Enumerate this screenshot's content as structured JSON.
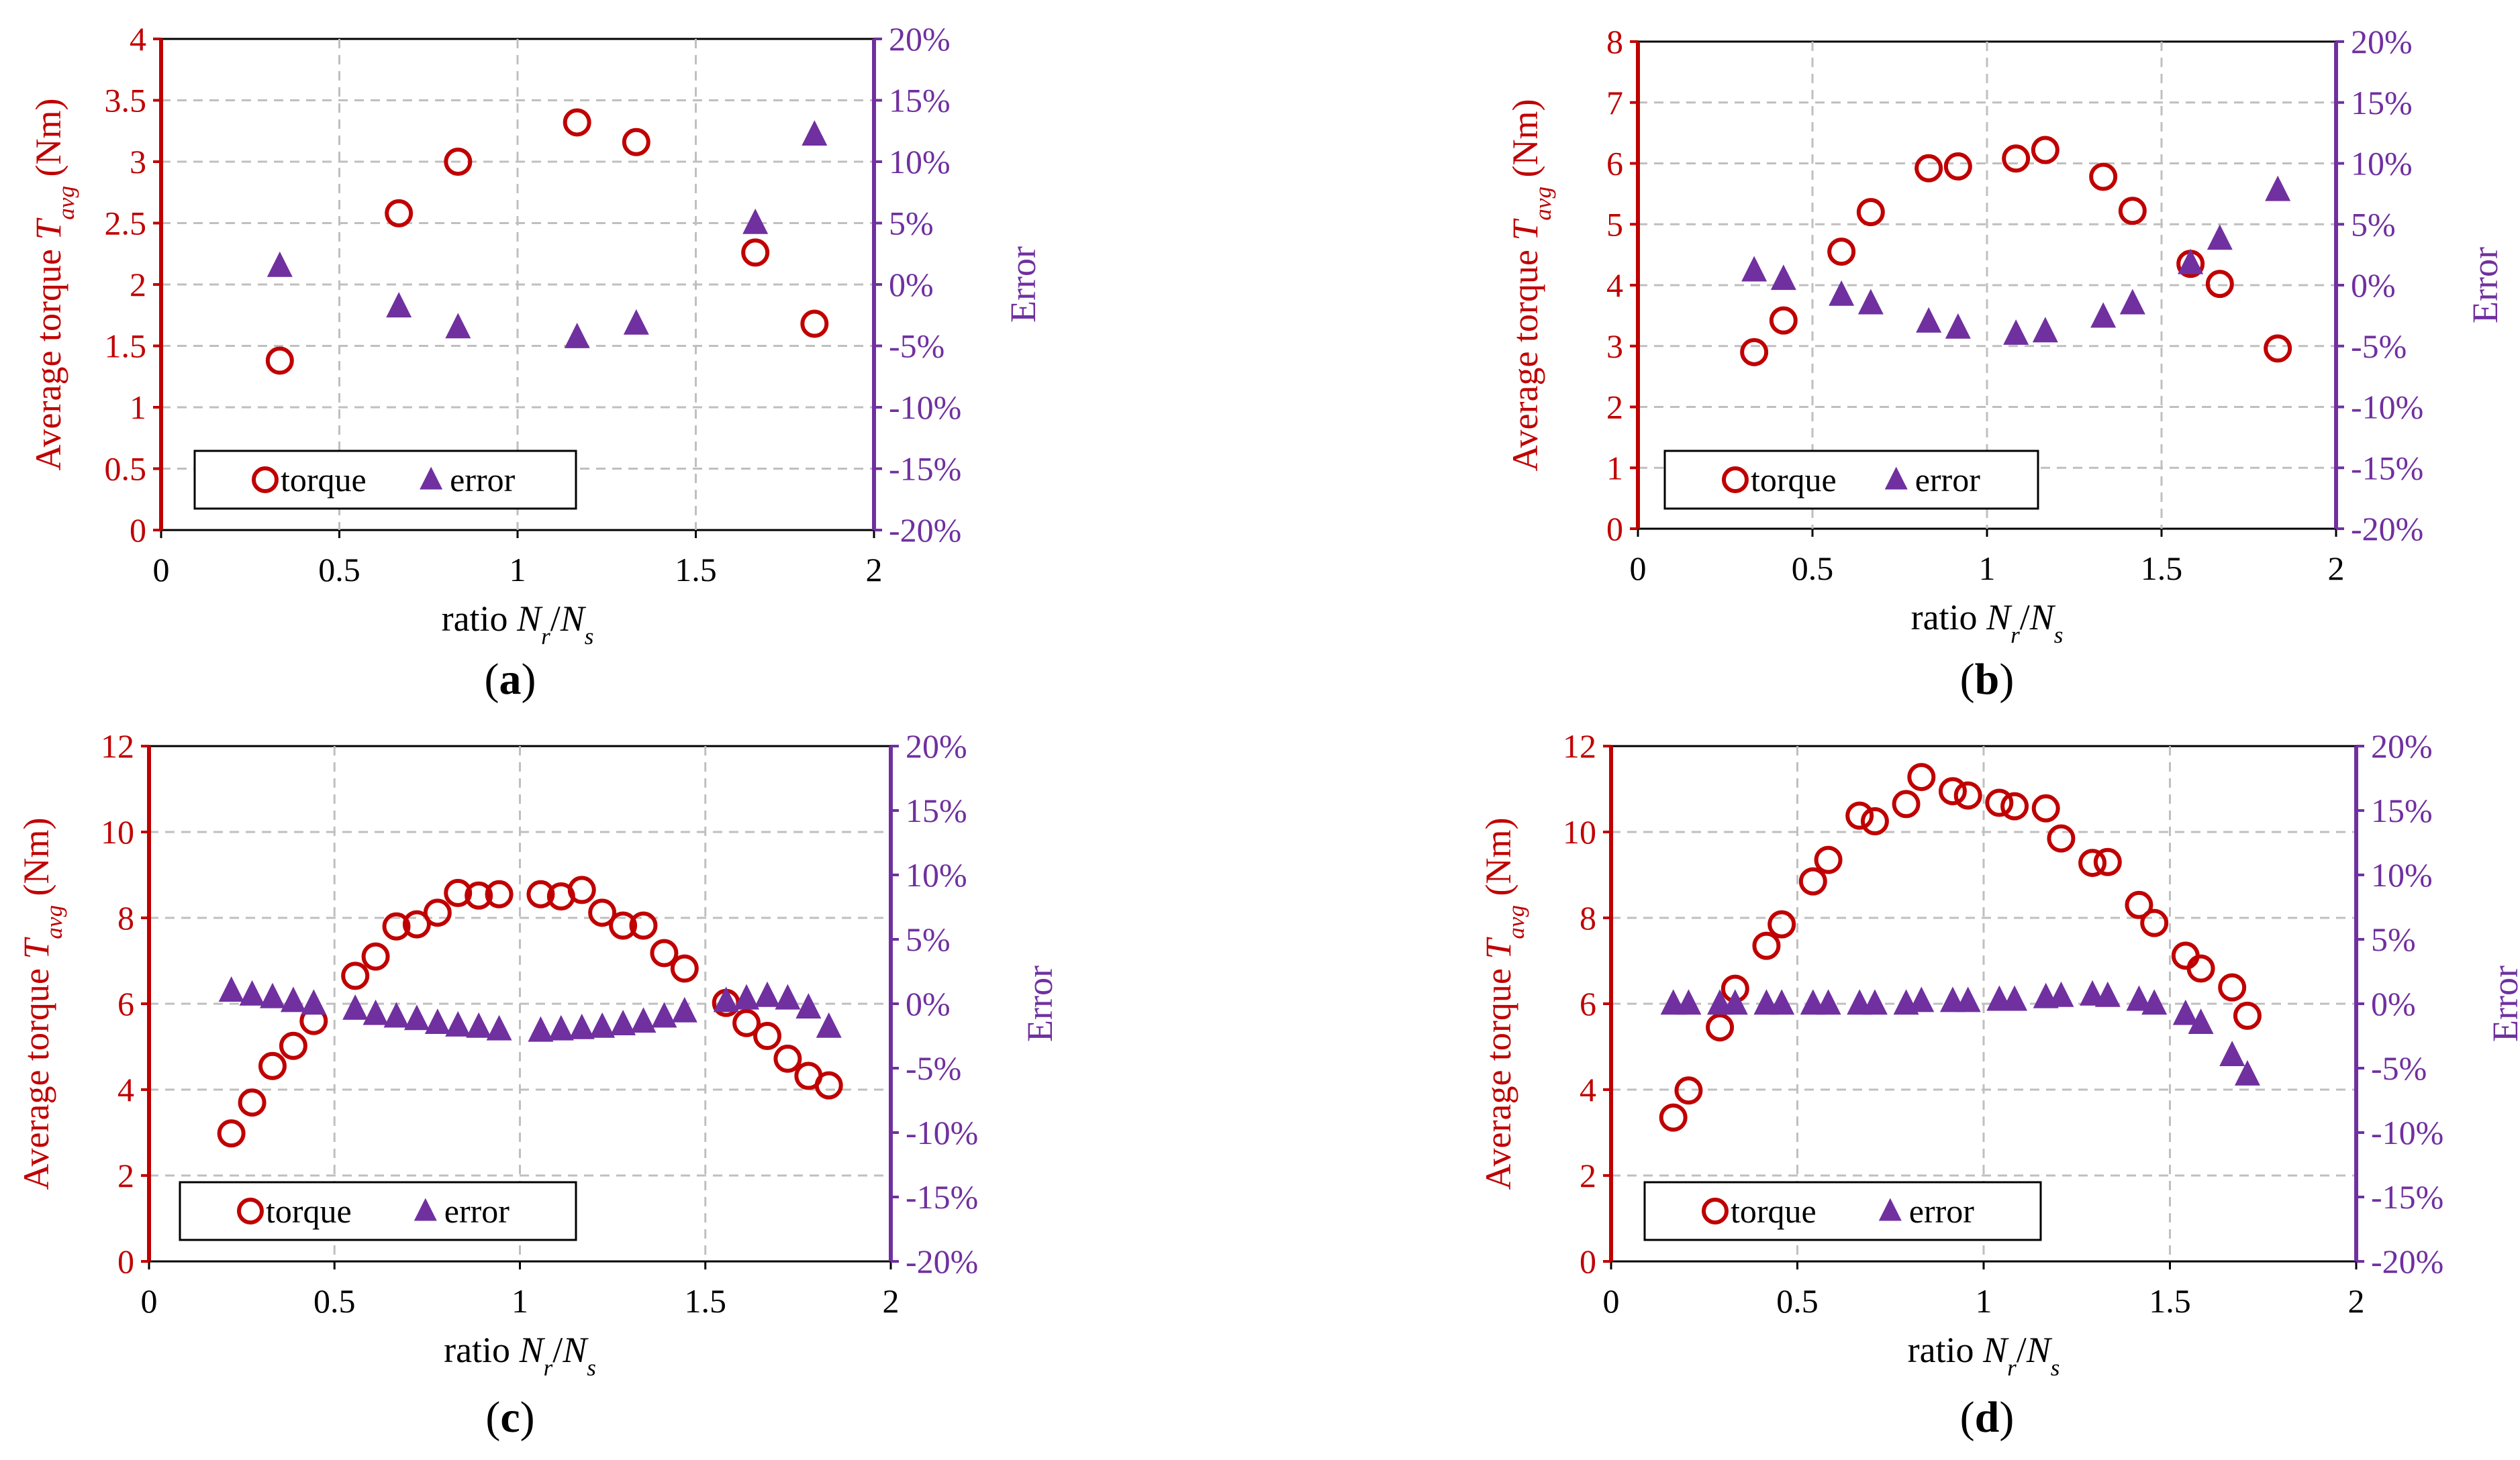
{
  "colors": {
    "torque": "#C00000",
    "error": "#7030A0",
    "grid": "#BFBFBF",
    "text": "#000000"
  },
  "panel_labels": [
    "a",
    "b",
    "c",
    "d"
  ],
  "chart_data": [
    {
      "id": "a",
      "type": "scatter",
      "xlabel": "ratio",
      "xlabel_math": [
        "N",
        "r",
        "/",
        "N",
        "s"
      ],
      "ylabel_left": "Average torque",
      "ylabel_left_math": [
        "T",
        "avg"
      ],
      "ylabel_left_unit": "(Nm)",
      "ylabel_right": "Error",
      "xlim": [
        0,
        2
      ],
      "xticks": [
        0,
        0.5,
        1,
        1.5,
        2
      ],
      "xtick_labels": [
        "0",
        "0.5",
        "1",
        "1.5",
        "2"
      ],
      "ylim_left": [
        0,
        4
      ],
      "yticks_left": [
        0,
        0.5,
        1,
        1.5,
        2,
        2.5,
        3,
        3.5,
        4
      ],
      "ytick_labels_left": [
        "0",
        "0.5",
        "1",
        "1.5",
        "2",
        "2.5",
        "3",
        "3.5",
        "4"
      ],
      "ylim_right": [
        -20,
        20
      ],
      "yticks_right": [
        -20,
        -15,
        -10,
        -5,
        0,
        5,
        10,
        15,
        20
      ],
      "ytick_labels_right": [
        "-20%",
        "-15%",
        "-10%",
        "-5%",
        "0%",
        "5%",
        "10%",
        "15%",
        "20%"
      ],
      "legend": [
        "torque",
        "error"
      ],
      "legend_position": "bottom-left",
      "series": [
        {
          "name": "torque",
          "axis": "left",
          "marker": "circle",
          "x": [
            0.333,
            0.667,
            0.833,
            1.167,
            1.333,
            1.667,
            1.833
          ],
          "y": [
            1.38,
            2.58,
            3.0,
            3.32,
            3.16,
            2.26,
            1.68
          ]
        },
        {
          "name": "error",
          "axis": "right",
          "marker": "triangle",
          "x": [
            0.333,
            0.667,
            0.833,
            1.167,
            1.333,
            1.667,
            1.833
          ],
          "y": [
            1.5,
            -1.8,
            -3.5,
            -4.3,
            -3.2,
            5.0,
            12.2
          ]
        }
      ]
    },
    {
      "id": "b",
      "type": "scatter",
      "xlabel": "ratio",
      "xlabel_math": [
        "N",
        "r",
        "/",
        "N",
        "s"
      ],
      "ylabel_left": "Average torque",
      "ylabel_left_math": [
        "T",
        "avg"
      ],
      "ylabel_left_unit": "(Nm)",
      "ylabel_right": "Error",
      "xlim": [
        0,
        2
      ],
      "xticks": [
        0,
        0.5,
        1,
        1.5,
        2
      ],
      "xtick_labels": [
        "0",
        "0.5",
        "1",
        "1.5",
        "2"
      ],
      "ylim_left": [
        0,
        8
      ],
      "yticks_left": [
        0,
        1,
        2,
        3,
        4,
        5,
        6,
        7,
        8
      ],
      "ytick_labels_left": [
        "0",
        "1",
        "2",
        "3",
        "4",
        "5",
        "6",
        "7",
        "8"
      ],
      "ylim_right": [
        -20,
        20
      ],
      "yticks_right": [
        -20,
        -15,
        -10,
        -5,
        0,
        5,
        10,
        15,
        20
      ],
      "ytick_labels_right": [
        "-20%",
        "-15%",
        "-10%",
        "-5%",
        "0%",
        "5%",
        "10%",
        "15%",
        "20%"
      ],
      "legend": [
        "torque",
        "error"
      ],
      "legend_position": "bottom-left",
      "series": [
        {
          "name": "torque",
          "axis": "left",
          "marker": "circle",
          "x": [
            0.333,
            0.417,
            0.583,
            0.667,
            0.833,
            0.917,
            1.083,
            1.167,
            1.333,
            1.417,
            1.583,
            1.667,
            1.833
          ],
          "y": [
            2.9,
            3.42,
            4.55,
            5.2,
            5.92,
            5.95,
            6.08,
            6.22,
            5.78,
            5.22,
            4.35,
            4.02,
            2.96
          ]
        },
        {
          "name": "error",
          "axis": "right",
          "marker": "triangle",
          "x": [
            0.333,
            0.417,
            0.583,
            0.667,
            0.833,
            0.917,
            1.083,
            1.167,
            1.333,
            1.417,
            1.583,
            1.667,
            1.833
          ],
          "y": [
            1.2,
            0.5,
            -0.8,
            -1.5,
            -3.0,
            -3.5,
            -4.0,
            -3.8,
            -2.6,
            -1.5,
            1.8,
            3.8,
            7.8
          ]
        }
      ]
    },
    {
      "id": "c",
      "type": "scatter",
      "xlabel": "ratio",
      "xlabel_math": [
        "N",
        "r",
        "/",
        "N",
        "s"
      ],
      "ylabel_left": "Average torque",
      "ylabel_left_math": [
        "T",
        "avg"
      ],
      "ylabel_left_unit": "(Nm)",
      "ylabel_right": "Error",
      "xlim": [
        0,
        2
      ],
      "xticks": [
        0,
        0.5,
        1,
        1.5,
        2
      ],
      "xtick_labels": [
        "0",
        "0.5",
        "1",
        "1.5",
        "2"
      ],
      "ylim_left": [
        0,
        12
      ],
      "yticks_left": [
        0,
        2,
        4,
        6,
        8,
        10,
        12
      ],
      "ytick_labels_left": [
        "0",
        "2",
        "4",
        "6",
        "8",
        "10",
        "12"
      ],
      "ylim_right": [
        -20,
        20
      ],
      "yticks_right": [
        -20,
        -15,
        -10,
        -5,
        0,
        5,
        10,
        15,
        20
      ],
      "ytick_labels_right": [
        "-20%",
        "-15%",
        "-10%",
        "-5%",
        "0%",
        "5%",
        "10%",
        "15%",
        "20%"
      ],
      "legend": [
        "torque",
        "error"
      ],
      "legend_position": "bottom-left",
      "series": [
        {
          "name": "torque",
          "axis": "left",
          "marker": "circle",
          "x": [
            0.222,
            0.278,
            0.333,
            0.389,
            0.444,
            0.556,
            0.611,
            0.667,
            0.722,
            0.778,
            0.833,
            0.889,
            0.944,
            1.056,
            1.111,
            1.167,
            1.222,
            1.278,
            1.333,
            1.389,
            1.444,
            1.556,
            1.611,
            1.667,
            1.722,
            1.778,
            1.833
          ],
          "y": [
            2.98,
            3.7,
            4.55,
            5.02,
            5.6,
            6.65,
            7.1,
            7.8,
            7.85,
            8.12,
            8.58,
            8.52,
            8.55,
            8.55,
            8.5,
            8.65,
            8.12,
            7.82,
            7.82,
            7.18,
            6.82,
            6.02,
            5.55,
            5.25,
            4.72,
            4.32,
            4.1
          ]
        },
        {
          "name": "error",
          "axis": "right",
          "marker": "triangle",
          "x": [
            0.222,
            0.278,
            0.333,
            0.389,
            0.444,
            0.556,
            0.611,
            0.667,
            0.722,
            0.778,
            0.833,
            0.889,
            0.944,
            1.056,
            1.111,
            1.167,
            1.222,
            1.278,
            1.333,
            1.389,
            1.444,
            1.556,
            1.611,
            1.667,
            1.722,
            1.778,
            1.833
          ],
          "y": [
            1.0,
            0.7,
            0.5,
            0.2,
            0.0,
            -0.4,
            -0.8,
            -1.0,
            -1.2,
            -1.5,
            -1.7,
            -1.8,
            -2.0,
            -2.1,
            -2.0,
            -1.9,
            -1.8,
            -1.6,
            -1.4,
            -1.0,
            -0.6,
            0.2,
            0.4,
            0.6,
            0.4,
            -0.3,
            -1.8
          ]
        }
      ]
    },
    {
      "id": "d",
      "type": "scatter",
      "xlabel": "ratio",
      "xlabel_math": [
        "N",
        "r",
        "/",
        "N",
        "s"
      ],
      "ylabel_left": "Average torque",
      "ylabel_left_math": [
        "T",
        "avg"
      ],
      "ylabel_left_unit": "(Nm)",
      "ylabel_right": "Error",
      "xlim": [
        0,
        2
      ],
      "xticks": [
        0,
        0.5,
        1,
        1.5,
        2
      ],
      "xtick_labels": [
        "0",
        "0.5",
        "1",
        "1.5",
        "2"
      ],
      "ylim_left": [
        0,
        12
      ],
      "yticks_left": [
        0,
        2,
        4,
        6,
        8,
        10,
        12
      ],
      "ytick_labels_left": [
        "0",
        "2",
        "4",
        "6",
        "8",
        "10",
        "12"
      ],
      "ylim_right": [
        -20,
        20
      ],
      "yticks_right": [
        -20,
        -15,
        -10,
        -5,
        0,
        5,
        10,
        15,
        20
      ],
      "ytick_labels_right": [
        "-20%",
        "-15%",
        "-10%",
        "-5%",
        "0%",
        "5%",
        "10%",
        "15%",
        "20%"
      ],
      "legend": [
        "torque",
        "error"
      ],
      "legend_position": "bottom-left",
      "series": [
        {
          "name": "torque",
          "axis": "left",
          "marker": "circle",
          "x": [
            0.167,
            0.208,
            0.292,
            0.333,
            0.417,
            0.458,
            0.542,
            0.583,
            0.667,
            0.708,
            0.792,
            0.833,
            0.917,
            0.958,
            1.042,
            1.083,
            1.167,
            1.208,
            1.292,
            1.333,
            1.417,
            1.458,
            1.542,
            1.583,
            1.667,
            1.708
          ],
          "y": [
            3.35,
            3.98,
            5.45,
            6.35,
            7.35,
            7.85,
            8.85,
            9.35,
            10.38,
            10.25,
            10.65,
            11.28,
            10.95,
            10.85,
            10.68,
            10.6,
            10.55,
            9.85,
            9.28,
            9.3,
            8.3,
            7.88,
            7.12,
            6.82,
            6.38,
            5.72
          ]
        },
        {
          "name": "error",
          "axis": "right",
          "marker": "triangle",
          "x": [
            0.167,
            0.208,
            0.292,
            0.333,
            0.417,
            0.458,
            0.542,
            0.583,
            0.667,
            0.708,
            0.792,
            0.833,
            0.917,
            0.958,
            1.042,
            1.083,
            1.167,
            1.208,
            1.292,
            1.333,
            1.417,
            1.458,
            1.542,
            1.583,
            1.667,
            1.708
          ],
          "y": [
            0.0,
            0.0,
            0.0,
            0.0,
            0.0,
            0.0,
            0.0,
            0.0,
            0.0,
            0.0,
            0.0,
            0.2,
            0.2,
            0.2,
            0.3,
            0.3,
            0.5,
            0.6,
            0.7,
            0.6,
            0.3,
            0.0,
            -0.8,
            -1.5,
            -4.0,
            -5.5
          ]
        }
      ]
    }
  ]
}
